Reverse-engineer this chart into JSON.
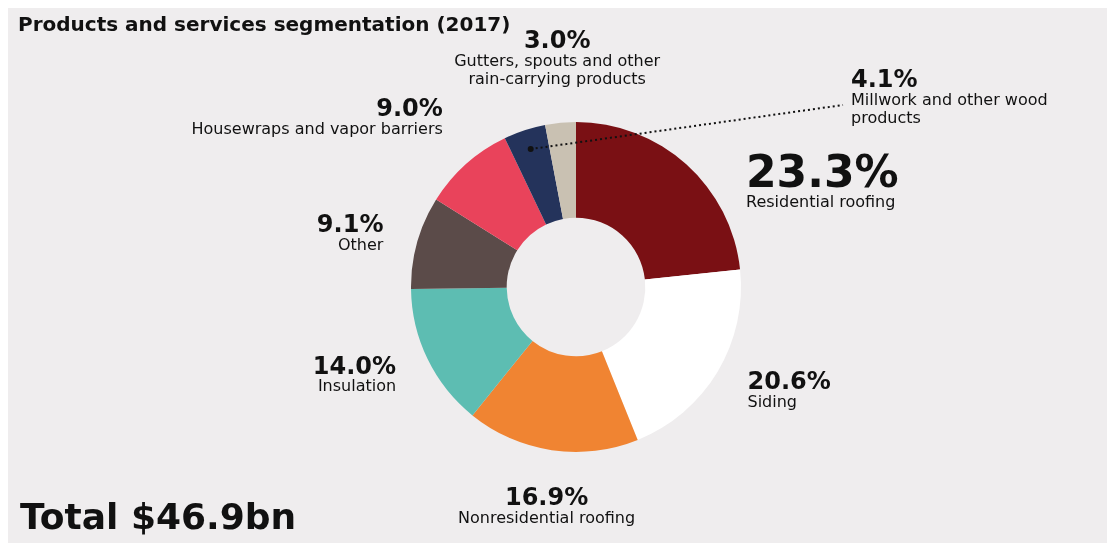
{
  "chart_data": {
    "type": "donut",
    "title": "Products and services segmentation (2017)",
    "categories": [
      "Residential roofing",
      "Siding",
      "Nonresidential roofing",
      "Insulation",
      "Other",
      "Housewraps and vapor barriers",
      "Millwork and other wood products",
      "Gutters, spouts and other rain-carrying products"
    ],
    "values": [
      23.3,
      20.6,
      16.9,
      14.0,
      9.1,
      9.0,
      4.1,
      3.0
    ],
    "value_labels": [
      "23.3%",
      "20.6%",
      "16.9%",
      "14.0%",
      "9.1%",
      "9.0%",
      "4.1%",
      "3.0%"
    ],
    "colors": [
      "#7a1014",
      "#ffffff",
      "#f08432",
      "#5dbdb2",
      "#5b4b49",
      "#e9435b",
      "#24335b",
      "#c9c1b2"
    ],
    "annotations": [
      "Total $46.9bn"
    ],
    "legend": false
  }
}
